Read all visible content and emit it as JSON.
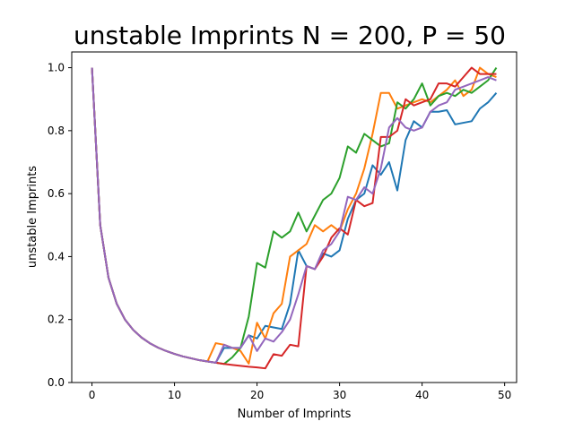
{
  "chart_data": {
    "type": "line",
    "title": "unstable Imprints N = 200, P = 50",
    "xlabel": "Number of Imprints",
    "ylabel": "unstable Imprints",
    "xlim": [
      -2.45,
      51.45
    ],
    "ylim": [
      0,
      1.05
    ],
    "xticks": [
      0,
      10,
      20,
      30,
      40,
      50
    ],
    "xtick_labels": [
      "0",
      "10",
      "20",
      "30",
      "40",
      "50"
    ],
    "yticks": [
      0.0,
      0.2,
      0.4,
      0.6,
      0.8,
      1.0
    ],
    "ytick_labels": [
      "0.0",
      "0.2",
      "0.4",
      "0.6",
      "0.8",
      "1.0"
    ],
    "grid": false,
    "x": [
      0,
      1,
      2,
      3,
      4,
      5,
      6,
      7,
      8,
      9,
      10,
      11,
      12,
      13,
      14,
      15,
      16,
      17,
      18,
      19,
      20,
      21,
      22,
      23,
      24,
      25,
      26,
      27,
      28,
      29,
      30,
      31,
      32,
      33,
      34,
      35,
      36,
      37,
      38,
      39,
      40,
      41,
      42,
      43,
      44,
      45,
      46,
      47,
      48,
      49
    ],
    "series": [
      {
        "color": "#1f77b4",
        "values": [
          1.0,
          0.5,
          0.333,
          0.25,
          0.2,
          0.167,
          0.143,
          0.125,
          0.111,
          0.1,
          0.091,
          0.083,
          0.077,
          0.071,
          0.067,
          0.063,
          0.11,
          0.11,
          0.11,
          0.15,
          0.14,
          0.18,
          0.175,
          0.17,
          0.25,
          0.42,
          0.37,
          0.36,
          0.41,
          0.4,
          0.42,
          0.52,
          0.58,
          0.6,
          0.69,
          0.66,
          0.7,
          0.61,
          0.77,
          0.83,
          0.81,
          0.86,
          0.86,
          0.865,
          0.82,
          0.825,
          0.83,
          0.87,
          0.89,
          0.92
        ]
      },
      {
        "color": "#ff7f0e",
        "values": [
          1.0,
          0.5,
          0.333,
          0.25,
          0.2,
          0.167,
          0.143,
          0.125,
          0.111,
          0.1,
          0.091,
          0.083,
          0.077,
          0.071,
          0.067,
          0.125,
          0.12,
          0.11,
          0.1,
          0.06,
          0.19,
          0.14,
          0.22,
          0.25,
          0.4,
          0.42,
          0.44,
          0.5,
          0.48,
          0.5,
          0.48,
          0.55,
          0.6,
          0.68,
          0.79,
          0.92,
          0.92,
          0.87,
          0.88,
          0.89,
          0.9,
          0.89,
          0.91,
          0.93,
          0.96,
          0.91,
          0.93,
          1.0,
          0.98,
          0.97
        ]
      },
      {
        "color": "#2ca02c",
        "values": [
          1.0,
          0.5,
          0.333,
          0.25,
          0.2,
          0.167,
          0.143,
          0.125,
          0.111,
          0.1,
          0.091,
          0.083,
          0.077,
          0.071,
          0.067,
          0.063,
          0.059,
          0.08,
          0.11,
          0.21,
          0.38,
          0.365,
          0.48,
          0.46,
          0.48,
          0.54,
          0.48,
          0.53,
          0.58,
          0.6,
          0.65,
          0.75,
          0.73,
          0.79,
          0.77,
          0.75,
          0.76,
          0.89,
          0.87,
          0.9,
          0.95,
          0.88,
          0.91,
          0.92,
          0.91,
          0.93,
          0.92,
          0.94,
          0.96,
          1.0
        ]
      },
      {
        "color": "#d62728",
        "values": [
          1.0,
          0.5,
          0.333,
          0.25,
          0.2,
          0.167,
          0.143,
          0.125,
          0.111,
          0.1,
          0.091,
          0.083,
          0.077,
          0.071,
          0.067,
          0.063,
          0.059,
          0.056,
          0.053,
          0.05,
          0.048,
          0.045,
          0.09,
          0.085,
          0.12,
          0.115,
          0.37,
          0.36,
          0.4,
          0.46,
          0.49,
          0.47,
          0.58,
          0.56,
          0.57,
          0.78,
          0.78,
          0.8,
          0.9,
          0.88,
          0.89,
          0.9,
          0.95,
          0.95,
          0.94,
          0.97,
          1.0,
          0.98,
          0.98,
          0.98
        ]
      },
      {
        "color": "#9467bd",
        "values": [
          1.0,
          0.5,
          0.333,
          0.25,
          0.2,
          0.167,
          0.143,
          0.125,
          0.111,
          0.1,
          0.091,
          0.083,
          0.077,
          0.071,
          0.067,
          0.063,
          0.12,
          0.11,
          0.11,
          0.15,
          0.1,
          0.14,
          0.13,
          0.16,
          0.2,
          0.28,
          0.37,
          0.36,
          0.42,
          0.44,
          0.48,
          0.59,
          0.58,
          0.62,
          0.6,
          0.68,
          0.81,
          0.84,
          0.81,
          0.8,
          0.81,
          0.86,
          0.88,
          0.89,
          0.93,
          0.94,
          0.95,
          0.96,
          0.97,
          0.96
        ]
      }
    ]
  }
}
